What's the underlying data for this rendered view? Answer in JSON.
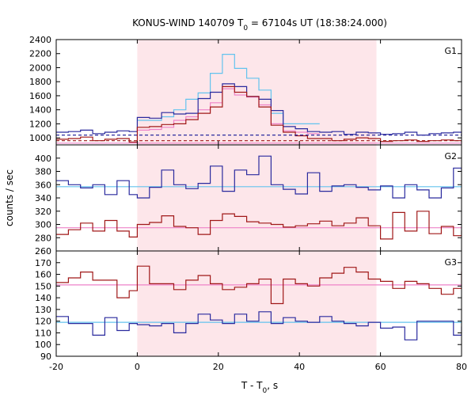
{
  "chart_data": {
    "type": "line",
    "title_main": "KONUS-WIND 140709 T",
    "title_sub": "0",
    "title_rest": " = 67104s UT (18:38:24.000)",
    "xlabel_main": "T - T",
    "xlabel_sub": "0",
    "xlabel_rest": ", s",
    "ylabel": "counts / sec",
    "xlim": [
      -20,
      80
    ],
    "x_ticks": [
      -20,
      0,
      20,
      40,
      60,
      80
    ],
    "shaded_interval": [
      0,
      59
    ],
    "grid": false,
    "colors": {
      "blue": "#2a2a9e",
      "red": "#a01818",
      "light_blue": "#63c3ee",
      "pink": "#ee82c8",
      "shade": "#fde6ea",
      "frame": "#000000"
    },
    "panels": [
      {
        "label": "G1",
        "ylim": [
          900,
          2400
        ],
        "y_ticks": [
          1000,
          1200,
          1400,
          1600,
          1800,
          2000,
          2200,
          2400
        ],
        "series": [
          {
            "color_key": "light_blue",
            "style": "step",
            "x": [
              0,
              3,
              6,
              9,
              12,
              15,
              18,
              21,
              24,
              27,
              30,
              33,
              36,
              39,
              42
            ],
            "y": [
              1250,
              1250,
              1300,
              1400,
              1550,
              1640,
              1920,
              2190,
              1990,
              1850,
              1680,
              1350,
              1200,
              1200,
              1200
            ]
          },
          {
            "color_key": "pink",
            "style": "step",
            "x": [
              0,
              3,
              6,
              9,
              12,
              15,
              18,
              21,
              24,
              27,
              30,
              33,
              36,
              39,
              42
            ],
            "y": [
              1110,
              1120,
              1150,
              1250,
              1300,
              1400,
              1500,
              1700,
              1610,
              1580,
              1470,
              1200,
              1100,
              1080,
              1060
            ]
          },
          {
            "color_key": "blue",
            "style": "step",
            "x": [
              -20,
              -17,
              -14,
              -11,
              -8,
              -5,
              -2,
              0,
              3,
              6,
              9,
              12,
              15,
              18,
              21,
              24,
              27,
              30,
              33,
              36,
              39,
              42,
              45,
              48,
              51,
              54,
              57,
              60,
              63,
              66,
              69,
              72,
              75,
              78,
              80
            ],
            "y": [
              1080,
              1090,
              1110,
              1060,
              1080,
              1100,
              1090,
              1290,
              1280,
              1360,
              1340,
              1350,
              1560,
              1650,
              1770,
              1730,
              1590,
              1550,
              1390,
              1160,
              1130,
              1090,
              1080,
              1090,
              1050,
              1080,
              1070,
              1050,
              1060,
              1080,
              1040,
              1060,
              1070,
              1080,
              1060
            ]
          },
          {
            "color_key": "red",
            "style": "step",
            "x": [
              -20,
              -17,
              -14,
              -11,
              -8,
              -5,
              -2,
              0,
              3,
              6,
              9,
              12,
              15,
              18,
              21,
              24,
              27,
              30,
              33,
              36,
              39,
              42,
              45,
              48,
              51,
              54,
              57,
              60,
              63,
              66,
              69,
              72,
              75,
              78,
              80
            ],
            "y": [
              980,
              990,
              1010,
              960,
              980,
              990,
              940,
              1150,
              1160,
              1190,
              1200,
              1260,
              1350,
              1440,
              1730,
              1650,
              1590,
              1440,
              1180,
              1080,
              1030,
              990,
              990,
              960,
              980,
              1000,
              990,
              950,
              960,
              970,
              950,
              960,
              970,
              960,
              950
            ]
          },
          {
            "color_key": "blue",
            "style": "dashed",
            "x": [
              -20,
              80
            ],
            "y": [
              1040,
              1040
            ]
          },
          {
            "color_key": "red",
            "style": "dashed",
            "x": [
              -20,
              80
            ],
            "y": [
              960,
              960
            ]
          },
          {
            "color_key": "pink",
            "style": "solid",
            "x": [
              -20,
              80
            ],
            "y": [
              925,
              925
            ]
          }
        ]
      },
      {
        "label": "G2",
        "ylim": [
          260,
          420
        ],
        "y_ticks": [
          260,
          280,
          300,
          320,
          340,
          360,
          380,
          400
        ],
        "series": [
          {
            "color_key": "light_blue",
            "style": "solid",
            "x": [
              -20,
              80
            ],
            "y": [
              357,
              357
            ]
          },
          {
            "color_key": "pink",
            "style": "solid",
            "x": [
              -20,
              80
            ],
            "y": [
              295,
              295
            ]
          },
          {
            "color_key": "blue",
            "style": "step",
            "x": [
              -20,
              -17,
              -14,
              -11,
              -8,
              -5,
              -2,
              0,
              3,
              6,
              9,
              12,
              15,
              18,
              21,
              24,
              27,
              30,
              33,
              36,
              39,
              42,
              45,
              48,
              51,
              54,
              57,
              60,
              63,
              66,
              69,
              72,
              75,
              78,
              80
            ],
            "y": [
              366,
              360,
              355,
              360,
              345,
              366,
              345,
              340,
              356,
              382,
              360,
              354,
              362,
              388,
              350,
              382,
              375,
              403,
              360,
              353,
              346,
              378,
              350,
              358,
              360,
              356,
              352,
              358,
              340,
              360,
              352,
              340,
              355,
              385,
              380
            ]
          },
          {
            "color_key": "red",
            "style": "step",
            "x": [
              -20,
              -17,
              -14,
              -11,
              -8,
              -5,
              -2,
              0,
              3,
              6,
              9,
              12,
              15,
              18,
              21,
              24,
              27,
              30,
              33,
              36,
              39,
              42,
              45,
              48,
              51,
              54,
              57,
              60,
              63,
              66,
              69,
              72,
              75,
              78,
              80
            ],
            "y": [
              285,
              292,
              302,
              290,
              306,
              290,
              281,
              300,
              303,
              313,
              297,
              295,
              285,
              306,
              316,
              312,
              304,
              302,
              300,
              296,
              298,
              301,
              305,
              298,
              302,
              310,
              298,
              278,
              318,
              290,
              320,
              286,
              297,
              283,
              290
            ]
          }
        ]
      },
      {
        "label": "G3",
        "ylim": [
          90,
          180
        ],
        "y_ticks": [
          90,
          100,
          110,
          120,
          130,
          140,
          150,
          160,
          170
        ],
        "series": [
          {
            "color_key": "pink",
            "style": "solid",
            "x": [
              -20,
              80
            ],
            "y": [
              151,
              151
            ]
          },
          {
            "color_key": "light_blue",
            "style": "solid",
            "x": [
              -20,
              80
            ],
            "y": [
              119,
              119
            ]
          },
          {
            "color_key": "red",
            "style": "step",
            "x": [
              -20,
              -17,
              -14,
              -11,
              -8,
              -5,
              -2,
              0,
              3,
              6,
              9,
              12,
              15,
              18,
              21,
              24,
              27,
              30,
              33,
              36,
              39,
              42,
              45,
              48,
              51,
              54,
              57,
              60,
              63,
              66,
              69,
              72,
              75,
              78,
              80
            ],
            "y": [
              153,
              157,
              162,
              155,
              155,
              140,
              146,
              167,
              152,
              152,
              147,
              155,
              159,
              152,
              147,
              149,
              152,
              156,
              135,
              156,
              152,
              150,
              157,
              161,
              166,
              162,
              156,
              154,
              148,
              154,
              152,
              148,
              143,
              148,
              162
            ]
          },
          {
            "color_key": "blue",
            "style": "step",
            "x": [
              -20,
              -17,
              -14,
              -11,
              -8,
              -5,
              -2,
              0,
              3,
              6,
              9,
              12,
              15,
              18,
              21,
              24,
              27,
              30,
              33,
              36,
              39,
              42,
              45,
              48,
              51,
              54,
              57,
              60,
              63,
              66,
              69,
              72,
              75,
              78,
              80
            ],
            "y": [
              124,
              118,
              118,
              108,
              123,
              112,
              118,
              117,
              116,
              118,
              110,
              118,
              126,
              121,
              118,
              126,
              120,
              128,
              118,
              123,
              120,
              119,
              124,
              120,
              118,
              116,
              119,
              114,
              115,
              104,
              120,
              120,
              120,
              108,
              115
            ]
          }
        ]
      }
    ]
  }
}
